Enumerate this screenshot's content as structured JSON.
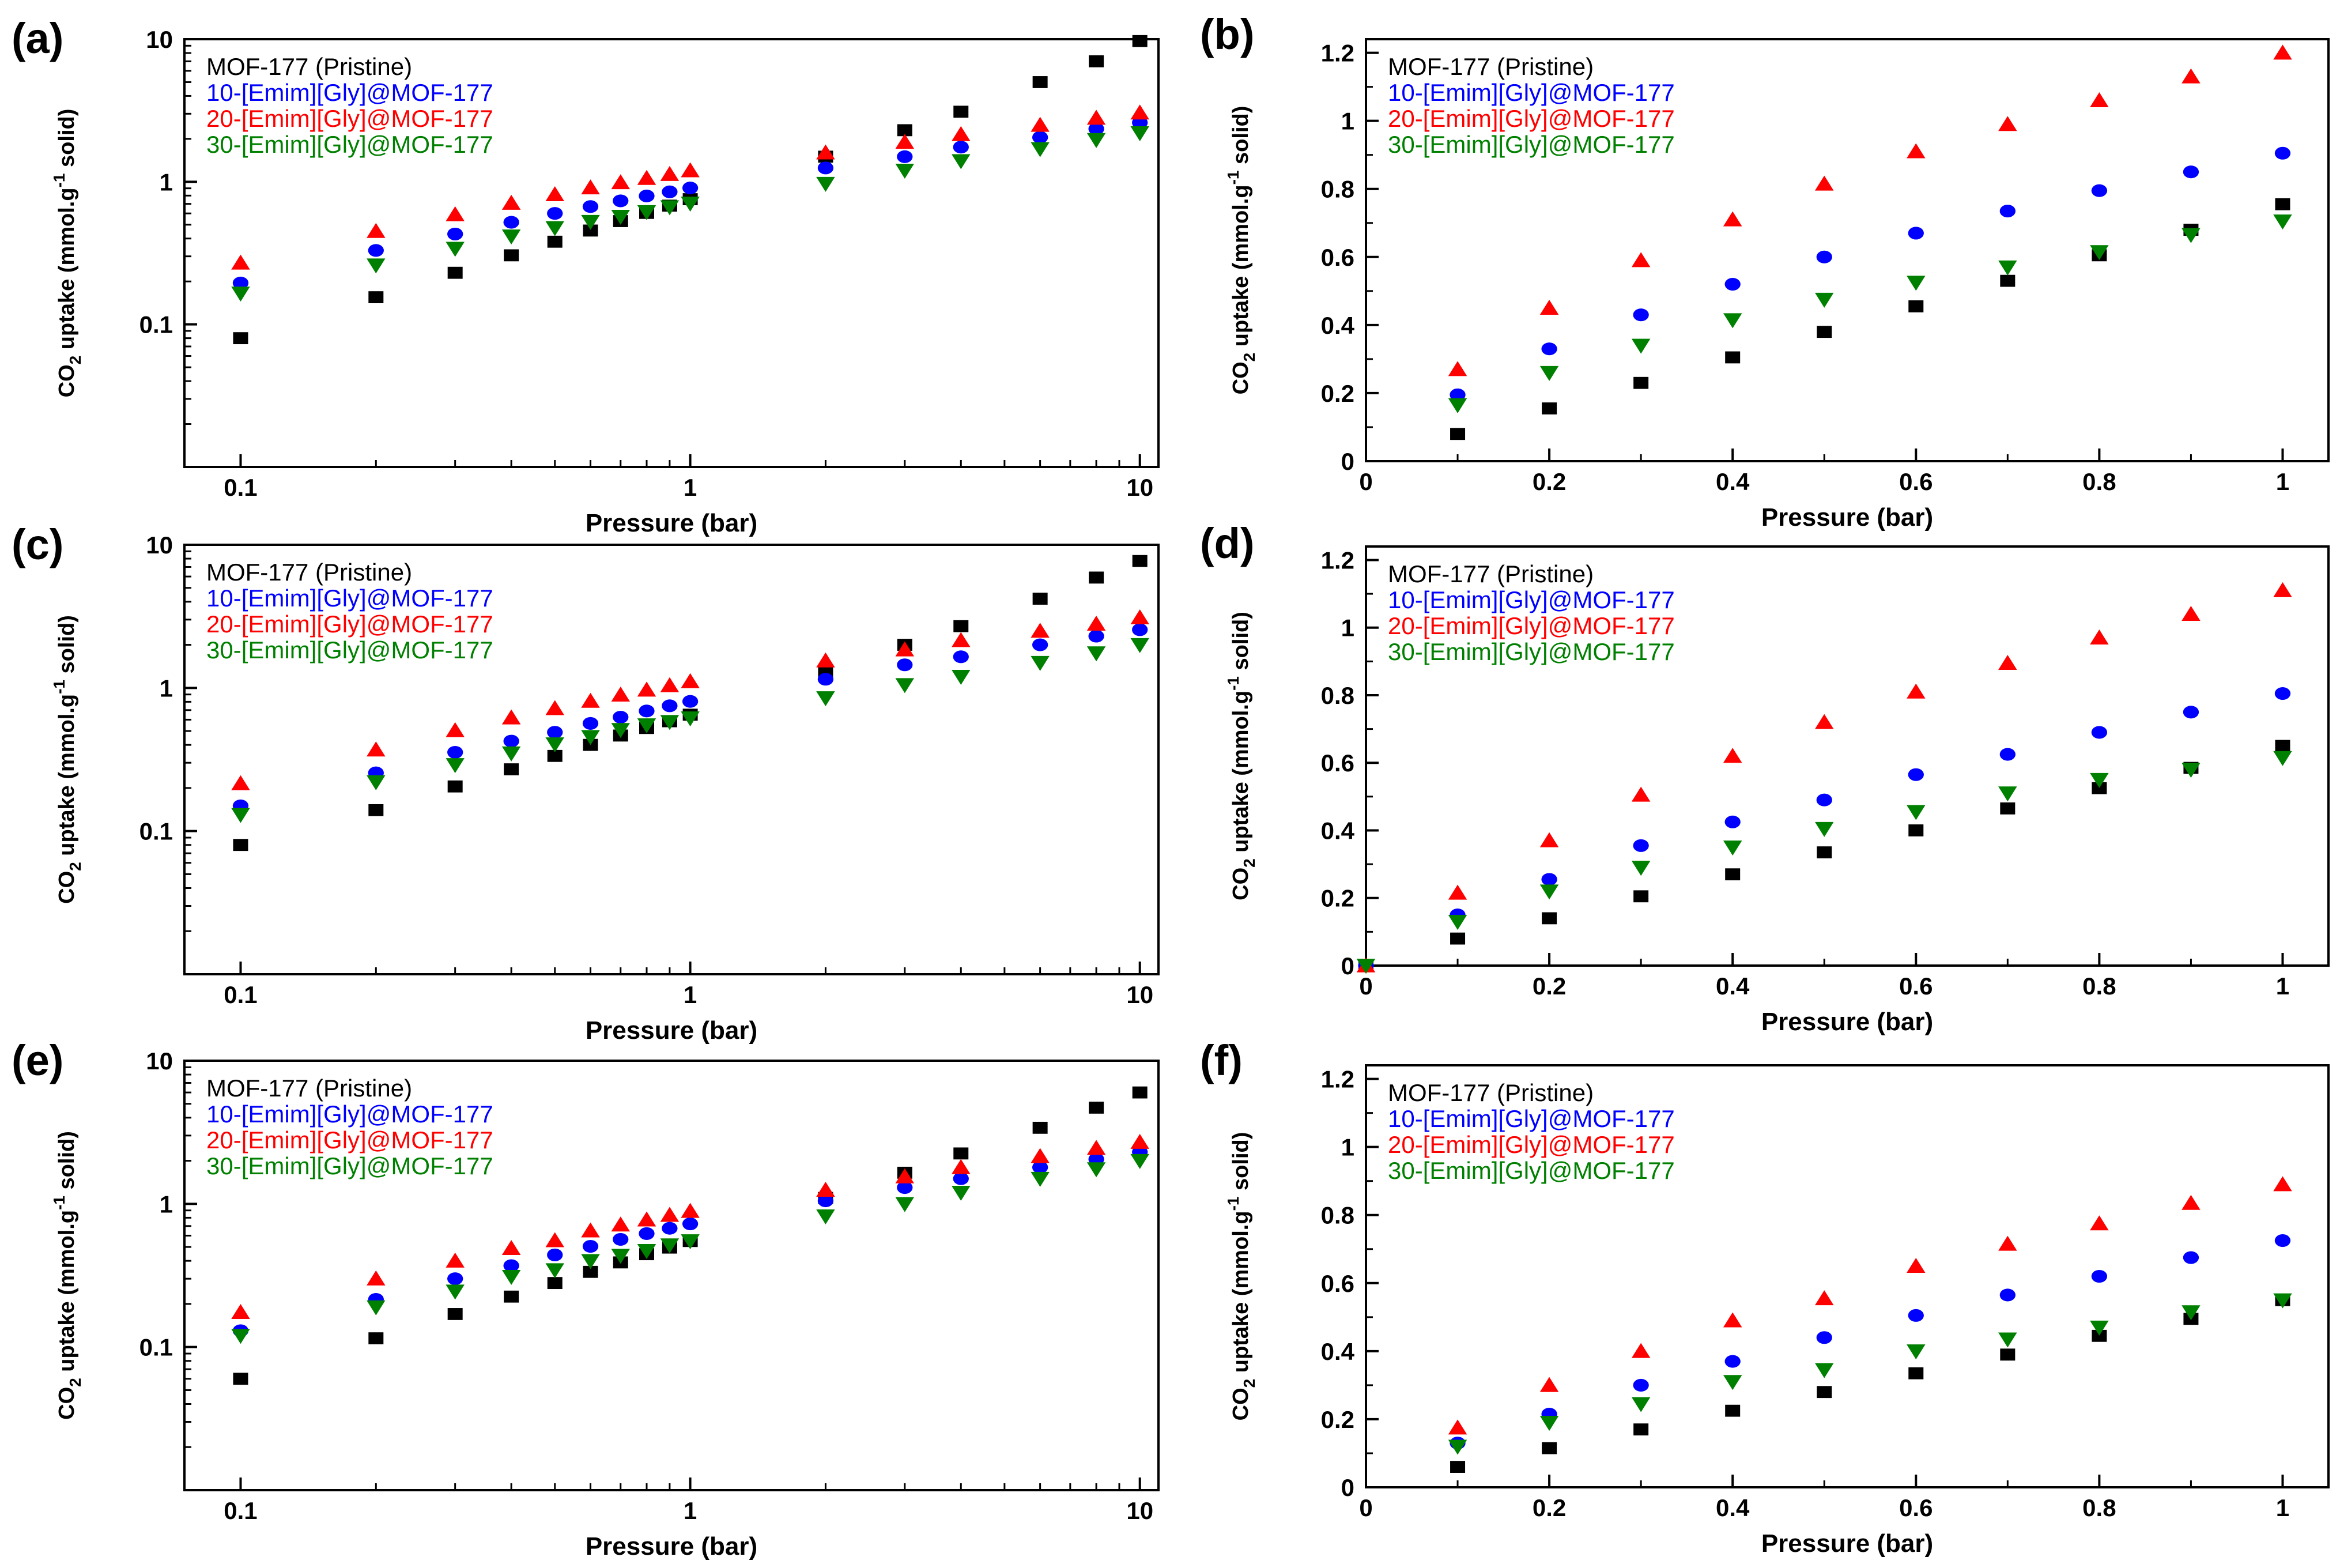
{
  "figure": {
    "legend": [
      {
        "name": "MOF-177 (Pristine)",
        "color": "#000000",
        "marker": "square"
      },
      {
        "name": "10-[Emim][Gly]@MOF-177",
        "color": "#0000ff",
        "marker": "circle"
      },
      {
        "name": "20-[Emim][Gly]@MOF-177",
        "color": "#ff0000",
        "marker": "triangle-up"
      },
      {
        "name": "30-[Emim][Gly]@MOF-177",
        "color": "#008000",
        "marker": "triangle-down"
      }
    ],
    "xlabel": "Pressure (bar)",
    "ylabel_parts": [
      "CO",
      "2",
      " uptake (mmol.g",
      "-1",
      " solid)"
    ]
  },
  "chart_data": [
    {
      "id": "a",
      "label": "(a)",
      "type": "scatter",
      "xscale": "log",
      "yscale": "log",
      "xlim": [
        0.075,
        11
      ],
      "ylim": [
        0.01,
        10
      ],
      "xticks": [
        0.1,
        1,
        10
      ],
      "xtick_labels": [
        "0.1",
        "1",
        "10"
      ],
      "yticks": [
        0.1,
        1,
        10
      ],
      "ytick_labels": [
        "0.1",
        "1",
        "10"
      ],
      "xlabel": "Pressure (bar)",
      "legend_position": "top-left",
      "series": [
        {
          "name": "MOF-177 (Pristine)",
          "x": [
            0.1,
            0.2,
            0.3,
            0.4,
            0.5,
            0.6,
            0.7,
            0.8,
            0.9,
            1,
            2,
            3,
            4,
            6,
            8,
            10
          ],
          "y": [
            0.08,
            0.155,
            0.23,
            0.305,
            0.38,
            0.455,
            0.53,
            0.605,
            0.68,
            0.755,
            1.5,
            2.3,
            3.1,
            5.0,
            7.0,
            9.7
          ]
        },
        {
          "name": "10-[Emim][Gly]@MOF-177",
          "x": [
            0.1,
            0.2,
            0.3,
            0.4,
            0.5,
            0.6,
            0.7,
            0.8,
            0.9,
            1,
            2,
            3,
            4,
            6,
            8,
            10
          ],
          "y": [
            0.195,
            0.33,
            0.43,
            0.52,
            0.6,
            0.67,
            0.735,
            0.795,
            0.85,
            0.905,
            1.25,
            1.5,
            1.75,
            2.05,
            2.35,
            2.6
          ]
        },
        {
          "name": "20-[Emim][Gly]@MOF-177",
          "x": [
            0.1,
            0.2,
            0.3,
            0.4,
            0.5,
            0.6,
            0.7,
            0.8,
            0.9,
            1,
            2,
            3,
            4,
            6,
            8,
            10
          ],
          "y": [
            0.27,
            0.45,
            0.59,
            0.71,
            0.815,
            0.91,
            0.99,
            1.06,
            1.13,
            1.2,
            1.6,
            1.9,
            2.15,
            2.5,
            2.8,
            3.05
          ]
        },
        {
          "name": "30-[Emim][Gly]@MOF-177",
          "x": [
            0.1,
            0.2,
            0.3,
            0.4,
            0.5,
            0.6,
            0.7,
            0.8,
            0.9,
            1,
            2,
            3,
            4,
            6,
            8,
            10
          ],
          "y": [
            0.165,
            0.26,
            0.34,
            0.415,
            0.475,
            0.525,
            0.57,
            0.615,
            0.665,
            0.705,
            0.97,
            1.2,
            1.4,
            1.7,
            1.97,
            2.2
          ]
        }
      ]
    },
    {
      "id": "b",
      "label": "(b)",
      "type": "scatter",
      "xscale": "linear",
      "yscale": "linear",
      "xlim": [
        0,
        1.05
      ],
      "ylim": [
        0,
        1.24
      ],
      "xticks": [
        0,
        0.2,
        0.4,
        0.6,
        0.8,
        1
      ],
      "xtick_labels": [
        "0",
        "0.2",
        "0.4",
        "0.6",
        "0.8",
        "1"
      ],
      "yticks": [
        0,
        0.2,
        0.4,
        0.6,
        0.8,
        1,
        1.2
      ],
      "ytick_labels": [
        "0",
        "0.2",
        "0.4",
        "0.6",
        "0.8",
        "1",
        "1.2"
      ],
      "xlabel": "Pressure (bar)",
      "legend_position": "top-left",
      "series": [
        {
          "name": "MOF-177 (Pristine)",
          "x": [
            0.1,
            0.2,
            0.3,
            0.4,
            0.5,
            0.6,
            0.7,
            0.8,
            0.9,
            1
          ],
          "y": [
            0.08,
            0.155,
            0.23,
            0.305,
            0.38,
            0.455,
            0.53,
            0.605,
            0.68,
            0.755
          ]
        },
        {
          "name": "10-[Emim][Gly]@MOF-177",
          "x": [
            0.1,
            0.2,
            0.3,
            0.4,
            0.5,
            0.6,
            0.7,
            0.8,
            0.9,
            1
          ],
          "y": [
            0.195,
            0.33,
            0.43,
            0.52,
            0.6,
            0.67,
            0.735,
            0.795,
            0.85,
            0.905
          ]
        },
        {
          "name": "20-[Emim][Gly]@MOF-177",
          "x": [
            0.1,
            0.2,
            0.3,
            0.4,
            0.5,
            0.6,
            0.7,
            0.8,
            0.9,
            1
          ],
          "y": [
            0.27,
            0.45,
            0.59,
            0.71,
            0.815,
            0.91,
            0.99,
            1.06,
            1.13,
            1.2
          ]
        },
        {
          "name": "30-[Emim][Gly]@MOF-177",
          "x": [
            0.1,
            0.2,
            0.3,
            0.4,
            0.5,
            0.6,
            0.7,
            0.8,
            0.9,
            1
          ],
          "y": [
            0.165,
            0.26,
            0.34,
            0.415,
            0.475,
            0.525,
            0.57,
            0.615,
            0.665,
            0.705
          ]
        }
      ]
    },
    {
      "id": "c",
      "label": "(c)",
      "type": "scatter",
      "xscale": "log",
      "yscale": "log",
      "xlim": [
        0.075,
        11
      ],
      "ylim": [
        0.01,
        10
      ],
      "xticks": [
        0.1,
        1,
        10
      ],
      "xtick_labels": [
        "0.1",
        "1",
        "10"
      ],
      "yticks": [
        0.1,
        1,
        10
      ],
      "ytick_labels": [
        "0.1",
        "1",
        "10"
      ],
      "xlabel": "Pressure (bar)",
      "legend_position": "top-left",
      "series": [
        {
          "name": "MOF-177 (Pristine)",
          "x": [
            0.1,
            0.2,
            0.3,
            0.4,
            0.5,
            0.6,
            0.7,
            0.8,
            0.9,
            1,
            2,
            3,
            4,
            6,
            8,
            10
          ],
          "y": [
            0.08,
            0.14,
            0.205,
            0.27,
            0.335,
            0.4,
            0.465,
            0.525,
            0.585,
            0.65,
            1.3,
            2.0,
            2.7,
            4.2,
            5.9,
            7.7
          ]
        },
        {
          "name": "10-[Emim][Gly]@MOF-177",
          "x": [
            0.1,
            0.2,
            0.3,
            0.4,
            0.5,
            0.6,
            0.7,
            0.8,
            0.9,
            1,
            2,
            3,
            4,
            6,
            8,
            10
          ],
          "y": [
            0.15,
            0.255,
            0.355,
            0.425,
            0.49,
            0.565,
            0.625,
            0.69,
            0.75,
            0.805,
            1.15,
            1.45,
            1.65,
            2.0,
            2.3,
            2.55
          ]
        },
        {
          "name": "20-[Emim][Gly]@MOF-177",
          "x": [
            0.1,
            0.2,
            0.3,
            0.4,
            0.5,
            0.6,
            0.7,
            0.8,
            0.9,
            1,
            2,
            3,
            4,
            6,
            8,
            10
          ],
          "y": [
            0.215,
            0.37,
            0.505,
            0.62,
            0.72,
            0.81,
            0.895,
            0.97,
            1.04,
            1.11,
            1.55,
            1.85,
            2.15,
            2.5,
            2.8,
            3.1
          ]
        },
        {
          "name": "30-[Emim][Gly]@MOF-177",
          "x": [
            0.1,
            0.2,
            0.3,
            0.4,
            0.5,
            0.6,
            0.7,
            0.8,
            0.9,
            1,
            2,
            3,
            4,
            6,
            8,
            10
          ],
          "y": [
            0.13,
            0.22,
            0.29,
            0.35,
            0.405,
            0.455,
            0.51,
            0.55,
            0.58,
            0.615,
            0.85,
            1.05,
            1.2,
            1.5,
            1.75,
            2.0
          ]
        }
      ]
    },
    {
      "id": "d",
      "label": "(d)",
      "type": "scatter",
      "xscale": "linear",
      "yscale": "linear",
      "xlim": [
        0,
        1.05
      ],
      "ylim": [
        0,
        1.24
      ],
      "xticks": [
        0,
        0.2,
        0.4,
        0.6,
        0.8,
        1
      ],
      "xtick_labels": [
        "0",
        "0.2",
        "0.4",
        "0.6",
        "0.8",
        "1"
      ],
      "yticks": [
        0,
        0.2,
        0.4,
        0.6,
        0.8,
        1,
        1.2
      ],
      "ytick_labels": [
        "0",
        "0.2",
        "0.4",
        "0.6",
        "0.8",
        "1",
        "1.2"
      ],
      "xlabel": "Pressure (bar)",
      "legend_position": "top-left",
      "series": [
        {
          "name": "MOF-177 (Pristine)",
          "x": [
            0,
            0.1,
            0.2,
            0.3,
            0.4,
            0.5,
            0.6,
            0.7,
            0.8,
            0.9,
            1
          ],
          "y": [
            0,
            0.08,
            0.14,
            0.205,
            0.27,
            0.335,
            0.4,
            0.465,
            0.525,
            0.585,
            0.65
          ]
        },
        {
          "name": "10-[Emim][Gly]@MOF-177",
          "x": [
            0,
            0.1,
            0.2,
            0.3,
            0.4,
            0.5,
            0.6,
            0.7,
            0.8,
            0.9,
            1
          ],
          "y": [
            0,
            0.15,
            0.255,
            0.355,
            0.425,
            0.49,
            0.565,
            0.625,
            0.69,
            0.75,
            0.805
          ]
        },
        {
          "name": "20-[Emim][Gly]@MOF-177",
          "x": [
            0,
            0.1,
            0.2,
            0.3,
            0.4,
            0.5,
            0.6,
            0.7,
            0.8,
            0.9,
            1
          ],
          "y": [
            0,
            0.215,
            0.37,
            0.505,
            0.62,
            0.72,
            0.81,
            0.895,
            0.97,
            1.04,
            1.11
          ]
        },
        {
          "name": "30-[Emim][Gly]@MOF-177",
          "x": [
            0,
            0.1,
            0.2,
            0.3,
            0.4,
            0.5,
            0.6,
            0.7,
            0.8,
            0.9,
            1
          ],
          "y": [
            0,
            0.13,
            0.22,
            0.29,
            0.35,
            0.405,
            0.455,
            0.51,
            0.55,
            0.58,
            0.615
          ]
        }
      ]
    },
    {
      "id": "e",
      "label": "(e)",
      "type": "scatter",
      "xscale": "log",
      "yscale": "log",
      "xlim": [
        0.075,
        11
      ],
      "ylim": [
        0.01,
        10
      ],
      "xticks": [
        0.1,
        1,
        10
      ],
      "xtick_labels": [
        "0.1",
        "1",
        "10"
      ],
      "yticks": [
        0.1,
        1,
        10
      ],
      "ytick_labels": [
        "0.1",
        "1",
        "10"
      ],
      "xlabel": "Pressure (bar)",
      "legend_position": "top-left",
      "series": [
        {
          "name": "MOF-177 (Pristine)",
          "x": [
            0.1,
            0.2,
            0.3,
            0.4,
            0.5,
            0.6,
            0.7,
            0.8,
            0.9,
            1,
            2,
            3,
            4,
            6,
            8,
            10
          ],
          "y": [
            0.06,
            0.115,
            0.17,
            0.225,
            0.28,
            0.335,
            0.39,
            0.445,
            0.495,
            0.55,
            1.1,
            1.65,
            2.25,
            3.4,
            4.7,
            6.0
          ]
        },
        {
          "name": "10-[Emim][Gly]@MOF-177",
          "x": [
            0.1,
            0.2,
            0.3,
            0.4,
            0.5,
            0.6,
            0.7,
            0.8,
            0.9,
            1,
            2,
            3,
            4,
            6,
            8,
            10
          ],
          "y": [
            0.13,
            0.215,
            0.3,
            0.37,
            0.44,
            0.505,
            0.565,
            0.62,
            0.675,
            0.725,
            1.05,
            1.3,
            1.5,
            1.8,
            2.05,
            2.3
          ]
        },
        {
          "name": "20-[Emim][Gly]@MOF-177",
          "x": [
            0.1,
            0.2,
            0.3,
            0.4,
            0.5,
            0.6,
            0.7,
            0.8,
            0.9,
            1,
            2,
            3,
            4,
            6,
            8,
            10
          ],
          "y": [
            0.175,
            0.3,
            0.4,
            0.49,
            0.555,
            0.65,
            0.715,
            0.775,
            0.835,
            0.89,
            1.25,
            1.55,
            1.8,
            2.15,
            2.45,
            2.7
          ]
        },
        {
          "name": "30-[Emim][Gly]@MOF-177",
          "x": [
            0.1,
            0.2,
            0.3,
            0.4,
            0.5,
            0.6,
            0.7,
            0.8,
            0.9,
            1,
            2,
            3,
            4,
            6,
            8,
            10
          ],
          "y": [
            0.12,
            0.19,
            0.245,
            0.31,
            0.345,
            0.4,
            0.435,
            0.47,
            0.515,
            0.55,
            0.82,
            1.0,
            1.2,
            1.5,
            1.75,
            2.0
          ]
        }
      ]
    },
    {
      "id": "f",
      "label": "(f)",
      "type": "scatter",
      "xscale": "linear",
      "yscale": "linear",
      "xlim": [
        0,
        1.05
      ],
      "ylim": [
        0,
        1.24
      ],
      "xticks": [
        0,
        0.2,
        0.4,
        0.6,
        0.8,
        1
      ],
      "xtick_labels": [
        "0",
        "0.2",
        "0.4",
        "0.6",
        "0.8",
        "1"
      ],
      "yticks": [
        0,
        0.2,
        0.4,
        0.6,
        0.8,
        1,
        1.2
      ],
      "ytick_labels": [
        "0",
        "0.2",
        "0.4",
        "0.6",
        "0.8",
        "1",
        "1.2"
      ],
      "xlabel": "Pressure (bar)",
      "legend_position": "top-left",
      "series": [
        {
          "name": "MOF-177 (Pristine)",
          "x": [
            0.1,
            0.2,
            0.3,
            0.4,
            0.5,
            0.6,
            0.7,
            0.8,
            0.9,
            1
          ],
          "y": [
            0.06,
            0.115,
            0.17,
            0.225,
            0.28,
            0.335,
            0.39,
            0.445,
            0.495,
            0.55
          ]
        },
        {
          "name": "10-[Emim][Gly]@MOF-177",
          "x": [
            0.1,
            0.2,
            0.3,
            0.4,
            0.5,
            0.6,
            0.7,
            0.8,
            0.9,
            1
          ],
          "y": [
            0.13,
            0.215,
            0.3,
            0.37,
            0.44,
            0.505,
            0.565,
            0.62,
            0.675,
            0.725
          ]
        },
        {
          "name": "20-[Emim][Gly]@MOF-177",
          "x": [
            0.1,
            0.2,
            0.3,
            0.4,
            0.5,
            0.6,
            0.7,
            0.8,
            0.9,
            1
          ],
          "y": [
            0.175,
            0.3,
            0.4,
            0.49,
            0.555,
            0.65,
            0.715,
            0.775,
            0.835,
            0.89
          ]
        },
        {
          "name": "30-[Emim][Gly]@MOF-177",
          "x": [
            0.1,
            0.2,
            0.3,
            0.4,
            0.5,
            0.6,
            0.7,
            0.8,
            0.9,
            1
          ],
          "y": [
            0.12,
            0.19,
            0.245,
            0.31,
            0.345,
            0.4,
            0.435,
            0.47,
            0.515,
            0.55
          ]
        }
      ]
    }
  ]
}
